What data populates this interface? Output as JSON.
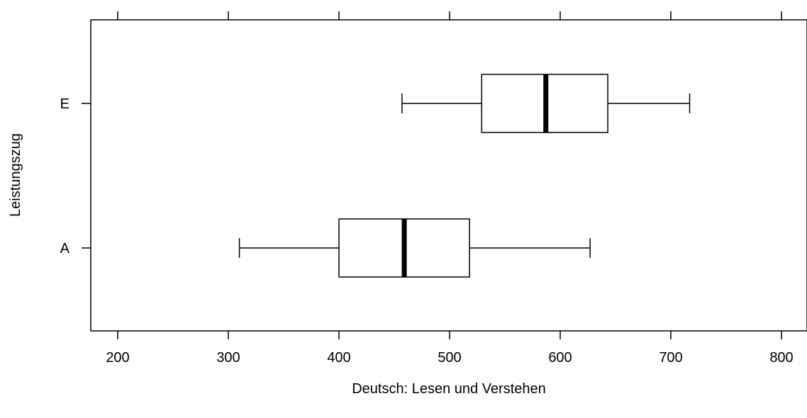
{
  "chart_data": {
    "type": "boxplot",
    "orientation": "horizontal",
    "title": "",
    "xlabel": "Deutsch: Lesen und Verstehen",
    "ylabel": "Leistungszug",
    "xlim": [
      175,
      825
    ],
    "xticks": [
      200,
      300,
      400,
      500,
      600,
      700,
      800
    ],
    "xtick_labels": [
      "200",
      "300",
      "400",
      "500",
      "600",
      "700",
      "800"
    ],
    "categories": [
      "A",
      "E"
    ],
    "boxes": [
      {
        "category": "A",
        "whisker_low": 310,
        "q1": 400,
        "median": 459,
        "q3": 518,
        "whisker_high": 627
      },
      {
        "category": "E",
        "whisker_low": 457,
        "q1": 529,
        "median": 587,
        "q3": 643,
        "whisker_high": 717
      }
    ],
    "x_axis_ticks_on_top": true,
    "grid": false
  }
}
